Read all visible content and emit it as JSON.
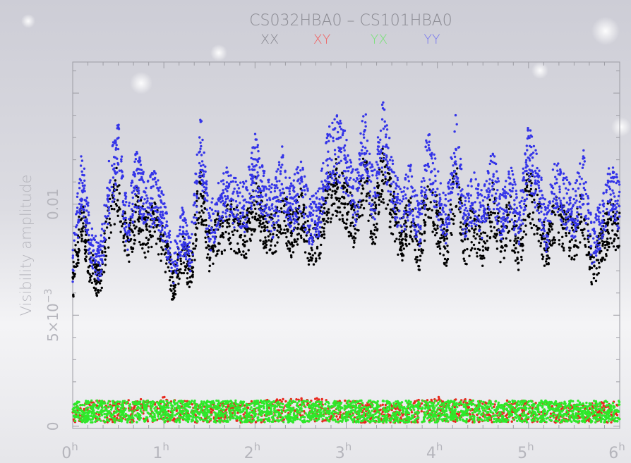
{
  "chart_data": {
    "type": "scatter",
    "title": "CS032HBA0 – CS101HBA0",
    "ylabel": "Visibility amplitude",
    "xlabel": "",
    "xlim_hours": [
      0,
      6
    ],
    "ylim": [
      -0.0001,
      0.0164
    ],
    "grid": false,
    "legend_placement": "top-center",
    "x_ticks": [
      {
        "value": 0,
        "label": "0",
        "sup": "h"
      },
      {
        "value": 1,
        "label": "1",
        "sup": "h"
      },
      {
        "value": 2,
        "label": "2",
        "sup": "h"
      },
      {
        "value": 3,
        "label": "3",
        "sup": "h"
      },
      {
        "value": 4,
        "label": "4",
        "sup": "h"
      },
      {
        "value": 5,
        "label": "5",
        "sup": "h"
      },
      {
        "value": 6,
        "label": "6",
        "sup": "h"
      }
    ],
    "y_ticks": [
      {
        "value": 0,
        "label": "0"
      },
      {
        "value": 0.005,
        "label": "5×10",
        "sup": "−3"
      },
      {
        "value": 0.01,
        "label": "0.01"
      }
    ],
    "series": [
      {
        "name": "XX",
        "color": "#000000",
        "x": [
          0.0,
          0.1,
          0.2,
          0.3,
          0.4,
          0.5,
          0.6,
          0.7,
          0.8,
          0.9,
          1.0,
          1.1,
          1.2,
          1.3,
          1.4,
          1.5,
          1.6,
          1.7,
          1.8,
          1.9,
          2.0,
          2.1,
          2.2,
          2.3,
          2.4,
          2.5,
          2.6,
          2.7,
          2.8,
          2.9,
          3.0,
          3.1,
          3.2,
          3.3,
          3.4,
          3.5,
          3.6,
          3.7,
          3.8,
          3.9,
          4.0,
          4.1,
          4.2,
          4.3,
          4.4,
          4.5,
          4.6,
          4.7,
          4.8,
          4.9,
          5.0,
          5.1,
          5.2,
          5.3,
          5.4,
          5.5,
          5.6,
          5.7,
          5.8,
          5.9,
          6.0
        ],
        "y": [
          0.0065,
          0.0095,
          0.0072,
          0.0066,
          0.0095,
          0.0109,
          0.008,
          0.01,
          0.0088,
          0.0092,
          0.0084,
          0.0064,
          0.008,
          0.007,
          0.011,
          0.008,
          0.0088,
          0.0094,
          0.009,
          0.0087,
          0.0103,
          0.0093,
          0.0086,
          0.01,
          0.0088,
          0.0098,
          0.0082,
          0.0085,
          0.0105,
          0.011,
          0.0102,
          0.0091,
          0.0114,
          0.009,
          0.0118,
          0.01,
          0.0085,
          0.0096,
          0.008,
          0.0108,
          0.0094,
          0.0081,
          0.0112,
          0.0083,
          0.0092,
          0.0083,
          0.0101,
          0.0084,
          0.0095,
          0.008,
          0.0108,
          0.0096,
          0.0079,
          0.0098,
          0.009,
          0.0085,
          0.01,
          0.0072,
          0.0082,
          0.0095,
          0.009
        ]
      },
      {
        "name": "XY",
        "color": "#e8281e",
        "x": [
          0.0,
          0.5,
          1.0,
          1.5,
          2.0,
          2.5,
          3.0,
          3.5,
          4.0,
          4.5,
          5.0,
          5.5,
          6.0
        ],
        "y": [
          0.0007,
          0.0007,
          0.0008,
          0.0006,
          0.0007,
          0.0008,
          0.0007,
          0.0006,
          0.0008,
          0.0007,
          0.0007,
          0.0006,
          0.0007
        ]
      },
      {
        "name": "YX",
        "color": "#2ee82a",
        "x": [
          0.0,
          0.5,
          1.0,
          1.5,
          2.0,
          2.5,
          3.0,
          3.5,
          4.0,
          4.5,
          5.0,
          5.5,
          6.0
        ],
        "y": [
          0.0007,
          0.0007,
          0.0007,
          0.0007,
          0.0007,
          0.0007,
          0.0007,
          0.0007,
          0.0007,
          0.0007,
          0.0007,
          0.0007,
          0.0007
        ]
      },
      {
        "name": "YY",
        "color": "#3434e8",
        "x": [
          0.0,
          0.1,
          0.2,
          0.3,
          0.4,
          0.5,
          0.6,
          0.7,
          0.8,
          0.9,
          1.0,
          1.1,
          1.2,
          1.3,
          1.4,
          1.5,
          1.6,
          1.7,
          1.8,
          1.9,
          2.0,
          2.1,
          2.2,
          2.3,
          2.4,
          2.5,
          2.6,
          2.7,
          2.8,
          2.9,
          3.0,
          3.1,
          3.2,
          3.3,
          3.4,
          3.5,
          3.6,
          3.7,
          3.8,
          3.9,
          4.0,
          4.1,
          4.2,
          4.3,
          4.4,
          4.5,
          4.6,
          4.7,
          4.8,
          4.9,
          5.0,
          5.1,
          5.2,
          5.3,
          5.4,
          5.5,
          5.6,
          5.7,
          5.8,
          5.9,
          6.0
        ],
        "y": [
          0.0075,
          0.0115,
          0.0082,
          0.0075,
          0.011,
          0.0125,
          0.009,
          0.0115,
          0.0101,
          0.0105,
          0.0095,
          0.0072,
          0.009,
          0.008,
          0.013,
          0.009,
          0.01,
          0.0107,
          0.0103,
          0.01,
          0.012,
          0.0105,
          0.0098,
          0.0115,
          0.01,
          0.011,
          0.0094,
          0.0098,
          0.0122,
          0.0128,
          0.012,
          0.0104,
          0.0132,
          0.0103,
          0.0136,
          0.0114,
          0.0097,
          0.011,
          0.0092,
          0.0125,
          0.0108,
          0.0093,
          0.013,
          0.0095,
          0.0105,
          0.0095,
          0.0116,
          0.0097,
          0.011,
          0.0092,
          0.0125,
          0.011,
          0.009,
          0.0113,
          0.0103,
          0.0097,
          0.0115,
          0.0083,
          0.0094,
          0.0109,
          0.01
        ]
      }
    ]
  }
}
